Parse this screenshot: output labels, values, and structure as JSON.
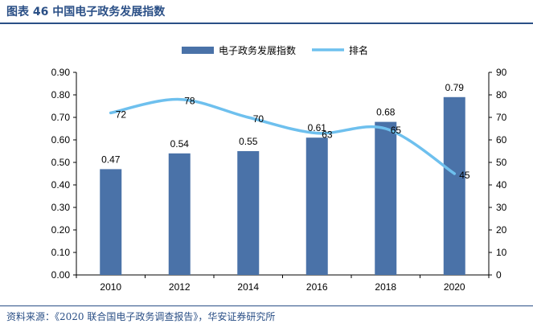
{
  "figure_title": "图表 46 中国电子政务发展指数",
  "source_note": "资料来源：《2020 联合国电子政务调查报告》，华安证券研究所",
  "colors": {
    "bar": "#4a72a8",
    "line": "#6ec0ee",
    "title": "#2a4f86"
  },
  "chart_data": {
    "type": "bar",
    "categories": [
      "2010",
      "2012",
      "2014",
      "2016",
      "2018",
      "2020"
    ],
    "series": [
      {
        "name": "电子政务发展指数",
        "type": "bar",
        "axis": "left",
        "values": [
          0.47,
          0.54,
          0.55,
          0.61,
          0.68,
          0.79
        ],
        "labels": [
          "0.47",
          "0.54",
          "0.55",
          "0.61",
          "0.68",
          "0.79"
        ]
      },
      {
        "name": "排名",
        "type": "line",
        "axis": "right",
        "values": [
          72,
          78,
          70,
          63,
          65,
          45
        ],
        "labels": [
          "72",
          "78",
          "70",
          "63",
          "65",
          "45"
        ]
      }
    ],
    "y_left": {
      "min": 0,
      "max": 0.9,
      "ticks": [
        "0.00",
        "0.10",
        "0.20",
        "0.30",
        "0.40",
        "0.50",
        "0.60",
        "0.70",
        "0.80",
        "0.90"
      ]
    },
    "y_right": {
      "min": 0,
      "max": 90,
      "ticks": [
        "0",
        "10",
        "20",
        "30",
        "40",
        "50",
        "60",
        "70",
        "80",
        "90"
      ]
    },
    "legend": {
      "position": "top-center",
      "items": [
        "电子政务发展指数",
        "排名"
      ]
    },
    "grid": false
  }
}
